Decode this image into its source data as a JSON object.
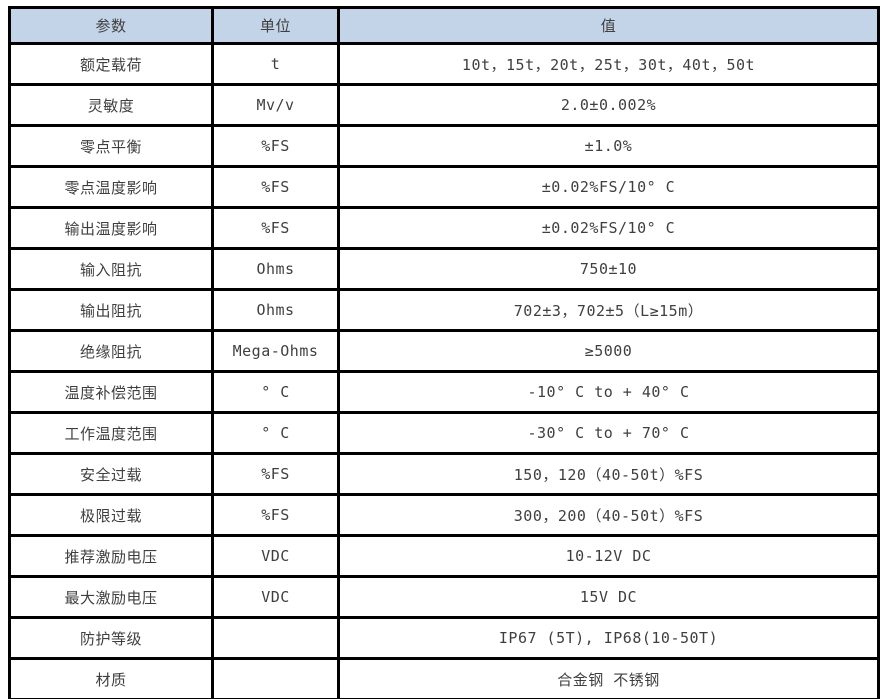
{
  "table": {
    "headers": {
      "param": "参数",
      "unit": "单位",
      "value": "值"
    },
    "rows": [
      {
        "param": "额定载荷",
        "unit": "t",
        "value": "10t，15t，20t，25t，30t，40t，50t"
      },
      {
        "param": "灵敏度",
        "unit": "Mv/v",
        "value": "2.0±0.002%"
      },
      {
        "param": "零点平衡",
        "unit": "%FS",
        "value": "±1.0%"
      },
      {
        "param": "零点温度影响",
        "unit": "%FS",
        "value": "±0.02%FS/10° C"
      },
      {
        "param": "输出温度影响",
        "unit": "%FS",
        "value": "±0.02%FS/10° C"
      },
      {
        "param": "输入阻抗",
        "unit": "Ohms",
        "value": "750±10"
      },
      {
        "param": "输出阻抗",
        "unit": "Ohms",
        "value": "702±3，702±5（L≥15m）"
      },
      {
        "param": "绝缘阻抗",
        "unit": "Mega-Ohms",
        "value": "≥5000"
      },
      {
        "param": "温度补偿范围",
        "unit": "° C",
        "value": "-10° C to + 40° C"
      },
      {
        "param": "工作温度范围",
        "unit": "° C",
        "value": "-30° C to + 70° C"
      },
      {
        "param": "安全过载",
        "unit": "%FS",
        "value": "150，120（40-50t）%FS"
      },
      {
        "param": "极限过载",
        "unit": "%FS",
        "value": "300，200（40-50t）%FS"
      },
      {
        "param": "推荐激励电压",
        "unit": "VDC",
        "value": "10-12V DC"
      },
      {
        "param": "最大激励电压",
        "unit": "VDC",
        "value": "15V DC"
      },
      {
        "param": "防护等级",
        "unit": "",
        "value": "IP67 (5T), IP68(10-50T)"
      },
      {
        "param": "材质",
        "unit": "",
        "value": "合金钢 不锈钢"
      }
    ],
    "colors": {
      "header_bg": "#C3D3E8",
      "border": "#000000",
      "text": "#3F3F3F",
      "row_bg": "#FFFFFF"
    }
  }
}
